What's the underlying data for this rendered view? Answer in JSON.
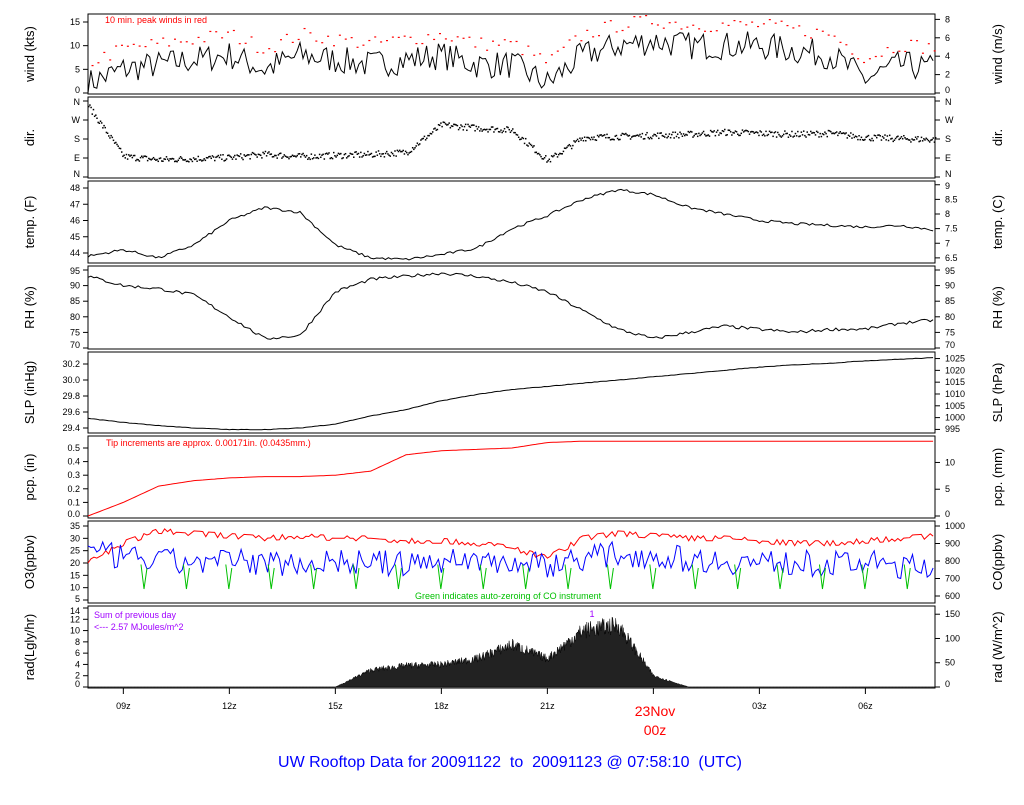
{
  "chart_data": {
    "type": "line",
    "title": "UW Rooftop Data for 20091122  to  20091123 @ 07:58:10  (UTC)",
    "x_unit": "hours UTC since 20091122 00z",
    "x_range": [
      8,
      31.97
    ],
    "x_ticks": [
      {
        "hour": 9,
        "label": "09z"
      },
      {
        "hour": 12,
        "label": "12z"
      },
      {
        "hour": 15,
        "label": "15z"
      },
      {
        "hour": 18,
        "label": "18z"
      },
      {
        "hour": 21,
        "label": "21z"
      },
      {
        "hour": 24,
        "label": "00z"
      },
      {
        "hour": 27,
        "label": "03z"
      },
      {
        "hour": 30,
        "label": "06z"
      }
    ],
    "date_marker": {
      "label": "23Nov",
      "sublabel": "00z",
      "hour": 24
    },
    "hours": [
      8,
      9,
      10,
      11,
      12,
      13,
      14,
      15,
      16,
      17,
      18,
      19,
      20,
      21,
      22,
      23,
      24,
      25,
      26,
      27,
      28,
      29,
      30,
      31,
      32
    ],
    "panels": [
      {
        "id": "wind",
        "ylabel": "wind (kts)",
        "ylabel_right": "wind (m/s)",
        "left_ticks": [
          "0",
          "5",
          "10",
          "15"
        ],
        "right_ticks": [
          "0",
          "2",
          "4",
          "6",
          "8"
        ],
        "annotation": "10 min. peak winds in red",
        "values": [
          2,
          5,
          6,
          7,
          8,
          5,
          8,
          7,
          6,
          7,
          8,
          6,
          6,
          2,
          8,
          10,
          11,
          10,
          10,
          10,
          9,
          8,
          3,
          6,
          5
        ],
        "color": "#000000",
        "peak_color": "#ff0000"
      },
      {
        "id": "dir",
        "ylabel": "dir.",
        "ylabel_right": "dir.",
        "left_ticks": [
          "N",
          "E",
          "S",
          "W",
          "N"
        ],
        "right_ticks": [
          "N",
          "E",
          "S",
          "W",
          "N"
        ],
        "values": [
          340,
          100,
          85,
          90,
          95,
          110,
          100,
          105,
          110,
          120,
          250,
          235,
          225,
          80,
          190,
          195,
          200,
          205,
          215,
          210,
          205,
          210,
          190,
          185,
          180
        ],
        "color": "#000000"
      },
      {
        "id": "temp",
        "ylabel": "temp. (F)",
        "ylabel_right": "temp. (C)",
        "left_ticks": [
          "44",
          "45",
          "46",
          "47",
          "48"
        ],
        "right_ticks": [
          "6.5",
          "7",
          "7.5",
          "8",
          "8.5",
          "9"
        ],
        "values": [
          43.8,
          44.2,
          43.7,
          44.5,
          46,
          46.8,
          46.5,
          44.5,
          43.7,
          43.6,
          43.9,
          44.3,
          45.5,
          46.3,
          47.3,
          47.9,
          47.6,
          46.8,
          46.4,
          46,
          45.8,
          45.7,
          45.6,
          45.7,
          45.4
        ],
        "color": "#000000"
      },
      {
        "id": "rh",
        "ylabel": "RH (%)",
        "ylabel_right": "RH (%)",
        "left_ticks": [
          "70",
          "75",
          "80",
          "85",
          "90",
          "95"
        ],
        "right_ticks": [
          "70",
          "75",
          "80",
          "85",
          "90",
          "95"
        ],
        "values": [
          93,
          90,
          89,
          87,
          80,
          73,
          74,
          88,
          92,
          93,
          94,
          93,
          91,
          88,
          82,
          76,
          73,
          75,
          77,
          76,
          75,
          76,
          76,
          78,
          79
        ],
        "color": "#000000"
      },
      {
        "id": "slp",
        "ylabel": "SLP (inHg)",
        "ylabel_right": "SLP (hPa)",
        "left_ticks": [
          "29.4",
          "29.6",
          "29.8",
          "30.0",
          "30.2"
        ],
        "right_ticks": [
          "995",
          "1000",
          "1005",
          "1010",
          "1015",
          "1020",
          "1025"
        ],
        "values": [
          29.52,
          29.47,
          29.43,
          29.4,
          29.38,
          29.38,
          29.4,
          29.45,
          29.55,
          29.63,
          29.74,
          29.82,
          29.88,
          29.92,
          29.96,
          30,
          30.04,
          30.08,
          30.12,
          30.16,
          30.19,
          30.21,
          30.24,
          30.26,
          30.28
        ],
        "color": "#000000"
      },
      {
        "id": "pcp",
        "ylabel": "pcp. (in)",
        "ylabel_right": "pcp. (mm)",
        "left_ticks": [
          "0.0",
          "0.1",
          "0.2",
          "0.3",
          "0.4",
          "0.5"
        ],
        "right_ticks": [
          "0",
          "5",
          "10"
        ],
        "annotation": "Tip increments are approx. 0.00171in. (0.0435mm.)",
        "values": [
          0,
          0.1,
          0.22,
          0.26,
          0.28,
          0.29,
          0.29,
          0.3,
          0.33,
          0.45,
          0.48,
          0.49,
          0.5,
          0.54,
          0.55,
          0.55,
          0.55,
          0.55,
          0.55,
          0.55,
          0.55,
          0.55,
          0.55,
          0.55,
          0.55
        ],
        "color": "#ff0000"
      },
      {
        "id": "o3co",
        "ylabel": "O3(ppbv)",
        "ylabel_right": "CO(ppbv)",
        "left_ticks": [
          "5",
          "10",
          "15",
          "20",
          "25",
          "30",
          "35"
        ],
        "right_ticks": [
          "600",
          "700",
          "800",
          "900",
          "1000"
        ],
        "annotation": "Green indicates auto-zeroing of CO instrument",
        "o3_values": [
          20,
          28,
          33,
          32,
          31,
          30,
          31,
          30,
          30,
          29,
          29,
          28,
          26,
          22,
          30,
          32,
          31,
          30,
          30,
          29,
          28,
          28,
          29,
          30,
          31
        ],
        "co_values": [
          850,
          820,
          800,
          790,
          800,
          790,
          790,
          800,
          790,
          780,
          800,
          810,
          790,
          780,
          820,
          840,
          830,
          810,
          800,
          790,
          790,
          780,
          790,
          770,
          760
        ],
        "o3_color": "#ff0000",
        "co_color": "#0000ff",
        "zero_color": "#00c000"
      },
      {
        "id": "rad",
        "ylabel": "rad(Lgly/hr)",
        "ylabel_right": "rad (W/m^2)",
        "left_ticks": [
          "0",
          "2",
          "4",
          "6",
          "8",
          "10",
          "12",
          "14"
        ],
        "right_ticks": [
          "0",
          "50",
          "100",
          "150"
        ],
        "annotation_line1": "Sum of previous day",
        "annotation_line2": "<--- 2.57 MJoules/m^2",
        "values": [
          0,
          0,
          0,
          0,
          0,
          0,
          0,
          0,
          3,
          3.8,
          4,
          5,
          7.5,
          5,
          10,
          11,
          2,
          0,
          0,
          0,
          0,
          0,
          0,
          0,
          0
        ],
        "color": "#000000",
        "annotation_color": "#a000ff",
        "marker_label": "1"
      }
    ]
  }
}
